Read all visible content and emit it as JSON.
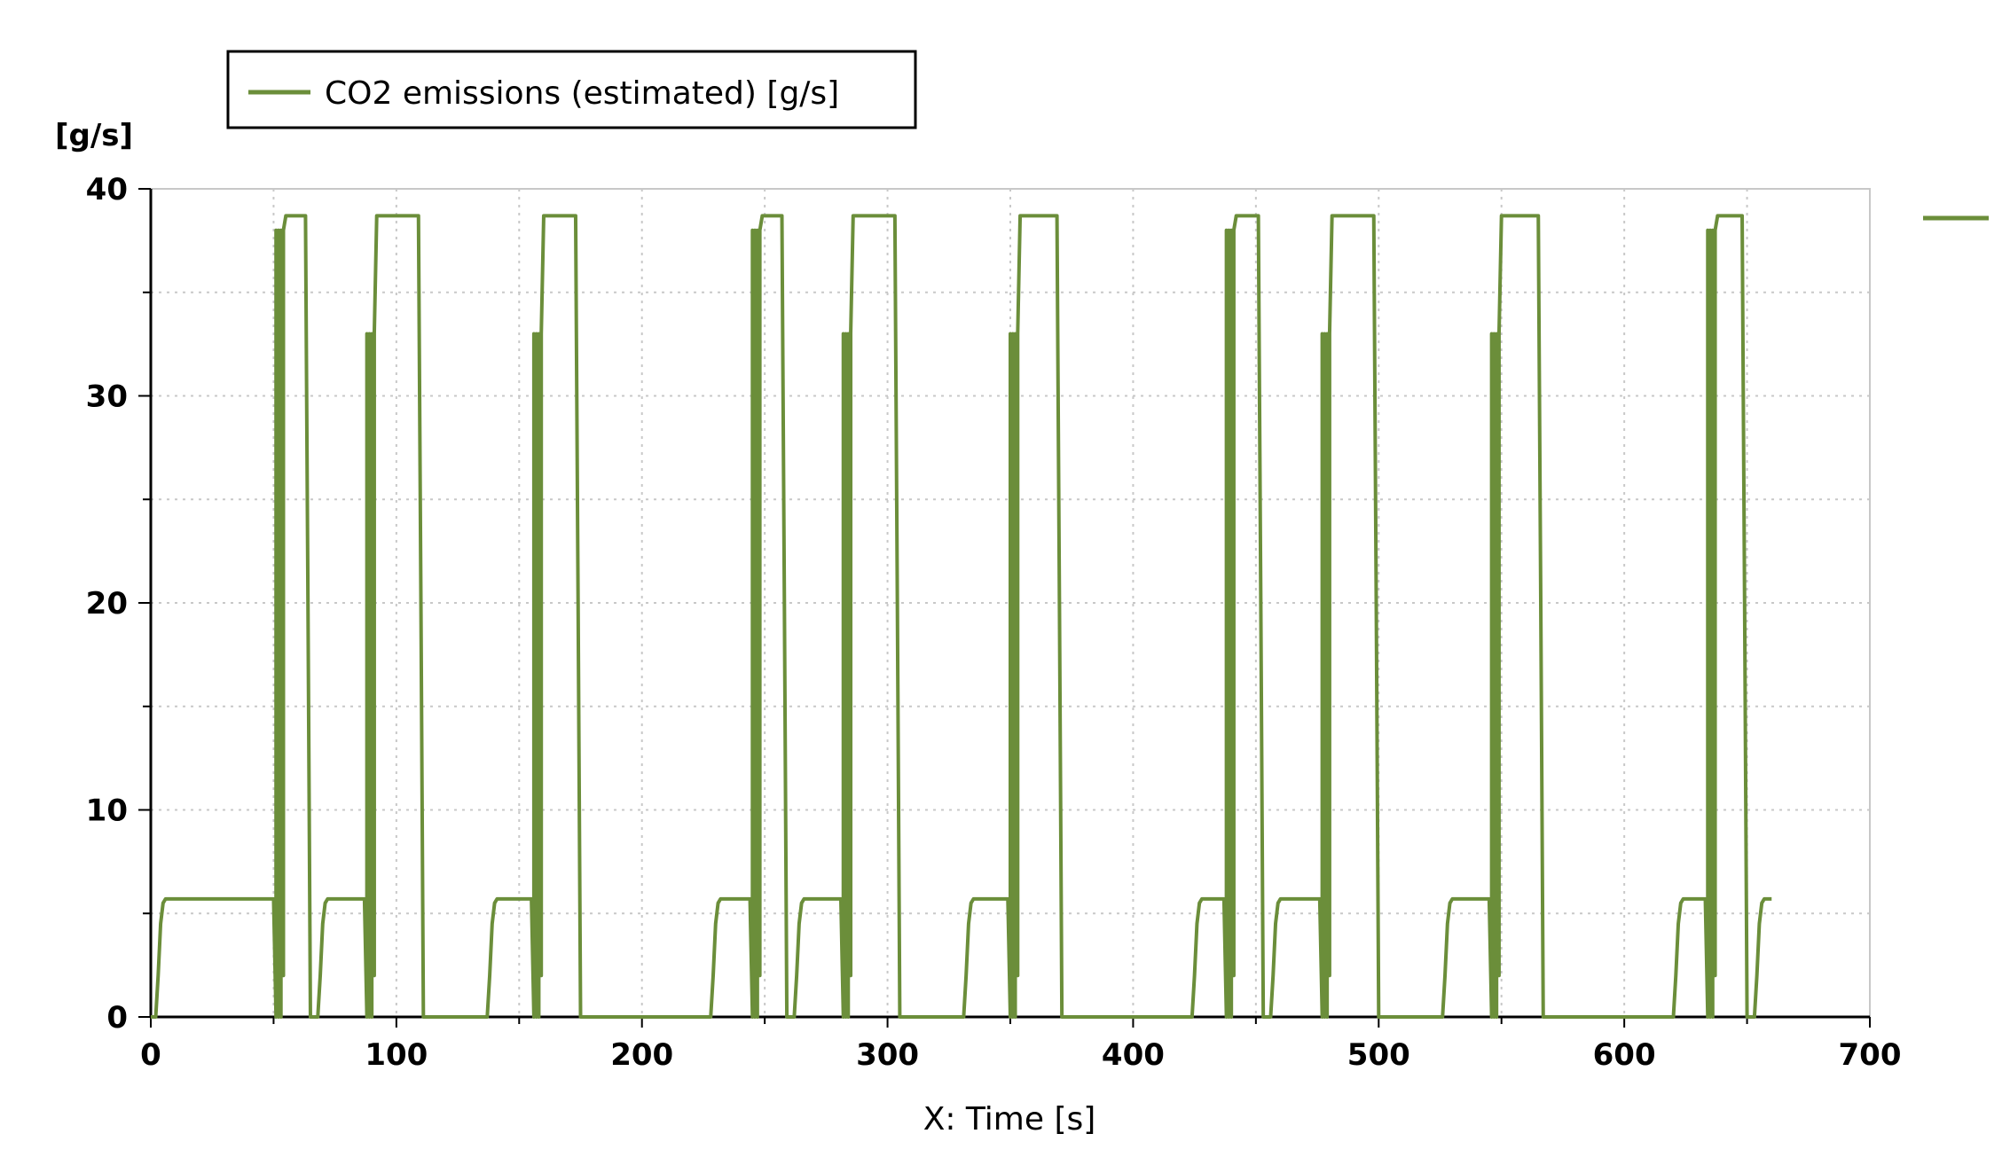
{
  "chart_data": {
    "type": "line",
    "xlabel": "X: Time [s]",
    "ylabel": "[g/s]",
    "xlim": [
      0,
      700
    ],
    "ylim": [
      0,
      40
    ],
    "xticks": [
      0,
      100,
      200,
      300,
      400,
      500,
      600,
      700
    ],
    "yticks": [
      0,
      10,
      20,
      30,
      40
    ],
    "grid": true,
    "legend_position": "top-left",
    "series": [
      {
        "name": "CO2 emissions (estimated) [g/s]",
        "color": "#6b8e3a",
        "x": [
          0,
          2,
          3,
          4,
          5,
          6,
          7,
          8,
          50,
          51,
          51,
          52,
          52,
          53,
          53,
          54,
          54,
          55,
          56,
          63,
          64,
          65,
          66,
          68,
          69,
          70,
          71,
          72,
          87,
          88,
          88,
          89,
          89,
          90,
          90,
          91,
          91,
          92,
          93,
          109,
          110,
          111,
          137,
          138,
          139,
          140,
          141,
          142,
          155,
          156,
          156,
          157,
          157,
          158,
          158,
          159,
          159,
          160,
          161,
          173,
          174,
          175,
          228,
          229,
          230,
          231,
          232,
          233,
          244,
          245,
          245,
          246,
          246,
          247,
          247,
          248,
          248,
          249,
          250,
          257,
          258,
          259,
          260,
          262,
          263,
          264,
          265,
          266,
          281,
          282,
          282,
          283,
          283,
          284,
          284,
          285,
          285,
          286,
          287,
          303,
          304,
          305,
          331,
          332,
          333,
          334,
          335,
          336,
          349,
          350,
          350,
          351,
          351,
          352,
          352,
          353,
          353,
          354,
          355,
          369,
          370,
          371,
          424,
          425,
          426,
          427,
          428,
          429,
          437,
          438,
          438,
          439,
          439,
          440,
          440,
          441,
          441,
          442,
          443,
          451,
          452,
          453,
          454,
          456,
          457,
          458,
          459,
          460,
          476,
          477,
          477,
          478,
          478,
          479,
          479,
          480,
          480,
          481,
          482,
          498,
          499,
          500,
          526,
          527,
          528,
          529,
          530,
          531,
          545,
          546,
          546,
          547,
          547,
          548,
          548,
          549,
          549,
          550,
          551,
          565,
          566,
          567,
          620,
          621,
          622,
          623,
          624,
          625,
          633,
          634,
          634,
          635,
          635,
          636,
          636,
          637,
          637,
          638,
          639,
          648,
          649,
          650,
          651,
          653,
          654,
          655,
          656,
          657,
          660
        ],
        "y": [
          0,
          0,
          2,
          4.5,
          5.5,
          5.7,
          5.7,
          5.7,
          5.7,
          0,
          38,
          0,
          38,
          0,
          38,
          2,
          38,
          38.7,
          38.7,
          38.7,
          20,
          0,
          0,
          0,
          2,
          4.5,
          5.5,
          5.7,
          5.7,
          0,
          33,
          0,
          33,
          0,
          33,
          2,
          33,
          38.7,
          38.7,
          38.7,
          20,
          0,
          0,
          2,
          4.5,
          5.5,
          5.7,
          5.7,
          5.7,
          0,
          33,
          0,
          33,
          0,
          33,
          2,
          33,
          38.7,
          38.7,
          38.7,
          20,
          0,
          0,
          2,
          4.5,
          5.5,
          5.7,
          5.7,
          5.7,
          0,
          38,
          0,
          38,
          0,
          38,
          2,
          38,
          38.7,
          38.7,
          38.7,
          20,
          0,
          0,
          0,
          2,
          4.5,
          5.5,
          5.7,
          5.7,
          0,
          33,
          0,
          33,
          0,
          33,
          2,
          33,
          38.7,
          38.7,
          38.7,
          20,
          0,
          0,
          2,
          4.5,
          5.5,
          5.7,
          5.7,
          5.7,
          0,
          33,
          0,
          33,
          0,
          33,
          2,
          33,
          38.7,
          38.7,
          38.7,
          20,
          0,
          0,
          2,
          4.5,
          5.5,
          5.7,
          5.7,
          5.7,
          0,
          38,
          0,
          38,
          0,
          38,
          2,
          38,
          38.7,
          38.7,
          38.7,
          20,
          0,
          0,
          0,
          2,
          4.5,
          5.5,
          5.7,
          5.7,
          0,
          33,
          0,
          33,
          0,
          33,
          2,
          33,
          38.7,
          38.7,
          38.7,
          20,
          0,
          0,
          2,
          4.5,
          5.5,
          5.7,
          5.7,
          5.7,
          0,
          33,
          0,
          33,
          0,
          33,
          2,
          33,
          38.7,
          38.7,
          38.7,
          20,
          0,
          0,
          2,
          4.5,
          5.5,
          5.7,
          5.7,
          5.7,
          0,
          38,
          0,
          38,
          0,
          38,
          2,
          38,
          38.7,
          38.7,
          38.7,
          20,
          0,
          0,
          0,
          2,
          4.5,
          5.5,
          5.7,
          5.7
        ]
      }
    ]
  }
}
